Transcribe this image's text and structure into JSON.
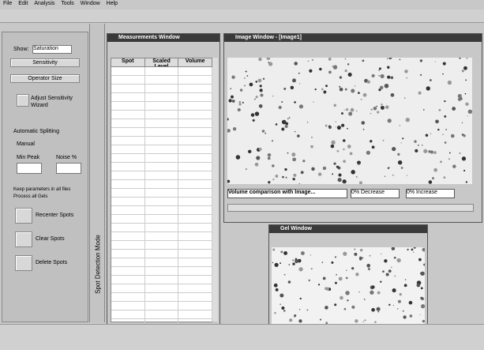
{
  "menu": [
    "File",
    "Edit",
    "Analysis",
    "Tools",
    "Window",
    "Help"
  ],
  "left_panel": {
    "show_label": "Show:",
    "show_value": "Saturation",
    "buttons": [
      "Sensitivity",
      "Operator Size"
    ],
    "wizard": [
      "Adjust Sensitivity",
      "Wizard"
    ],
    "automatic_splitting": "Automatic Splitting",
    "group": "Manual",
    "fields": [
      "Min Peak",
      "Noise %"
    ],
    "checks": [
      "Keep parameters in all files",
      "Process all Gels"
    ],
    "actions": [
      "Recenter Spots",
      "Clear Spots",
      "Delete Spots"
    ]
  },
  "mode_label": "Spot Detection Mode",
  "measurements": {
    "title": "Measurements Window",
    "columns": [
      "Spot",
      "Scaled Level",
      "Volume"
    ]
  },
  "image_window": {
    "title": "Image Window - [Image1]",
    "comparison": "Volume comparison with Image...",
    "decrease": "0% Decrease",
    "increase": "0% Increase"
  },
  "gel_window": {
    "title": "Gel Window"
  }
}
